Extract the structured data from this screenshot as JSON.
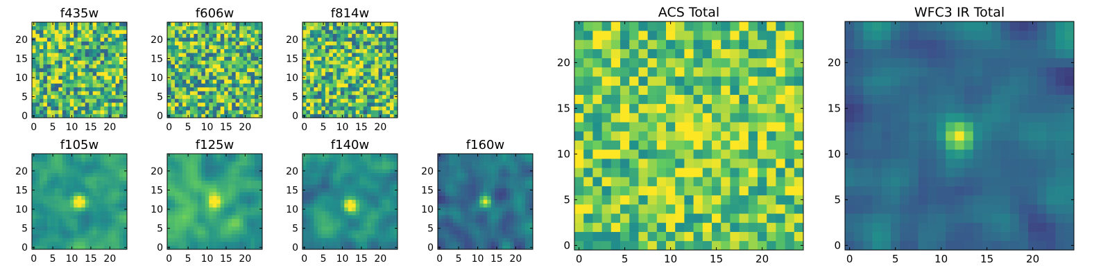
{
  "figure": {
    "colormap": "viridis",
    "cmap_stops": [
      "#440154",
      "#3b528b",
      "#21918c",
      "#5ec962",
      "#fde725"
    ]
  },
  "chart_data": [
    {
      "id": "f435w",
      "type": "heatmap",
      "title": "f435w",
      "grid_size": [
        25,
        25
      ],
      "xlim": [
        -0.5,
        24.5
      ],
      "ylim": [
        -0.5,
        24.5
      ],
      "x_ticks": [
        0,
        5,
        10,
        15,
        20
      ],
      "y_ticks": [
        0,
        5,
        10,
        15,
        20
      ],
      "x_tick_labels": [
        "0",
        "5",
        "10",
        "15",
        "20"
      ],
      "y_tick_labels": [
        "0",
        "5",
        "10",
        "15",
        "20"
      ],
      "grid": false,
      "pattern": "noise",
      "base_level": 0.68,
      "noise_amplitude": 0.38,
      "source_center": null,
      "source_amplitude": 0,
      "source_sigma": 1.2,
      "seed": 11
    },
    {
      "id": "f606w",
      "type": "heatmap",
      "title": "f606w",
      "grid_size": [
        25,
        25
      ],
      "xlim": [
        -0.5,
        24.5
      ],
      "ylim": [
        -0.5,
        24.5
      ],
      "x_ticks": [
        0,
        5,
        10,
        15,
        20
      ],
      "y_ticks": [
        0,
        5,
        10,
        15,
        20
      ],
      "x_tick_labels": [
        "0",
        "5",
        "10",
        "15",
        "20"
      ],
      "y_tick_labels": [
        "0",
        "5",
        "10",
        "15",
        "20"
      ],
      "grid": false,
      "pattern": "noise",
      "base_level": 0.68,
      "noise_amplitude": 0.38,
      "source_center": [
        12.5,
        12.5
      ],
      "source_amplitude": 0.45,
      "source_sigma": 1.1,
      "seed": 23
    },
    {
      "id": "f814w",
      "type": "heatmap",
      "title": "f814w",
      "grid_size": [
        25,
        25
      ],
      "xlim": [
        -0.5,
        24.5
      ],
      "ylim": [
        -0.5,
        24.5
      ],
      "x_ticks": [
        0,
        5,
        10,
        15,
        20
      ],
      "y_ticks": [
        0,
        5,
        10,
        15,
        20
      ],
      "x_tick_labels": [
        "0",
        "5",
        "10",
        "15",
        "20"
      ],
      "y_tick_labels": [
        "0",
        "5",
        "10",
        "15",
        "20"
      ],
      "grid": false,
      "pattern": "noise",
      "base_level": 0.68,
      "noise_amplitude": 0.38,
      "source_center": [
        13,
        12
      ],
      "source_amplitude": 0.5,
      "source_sigma": 1.3,
      "seed": 37
    },
    {
      "id": "f105w",
      "type": "heatmap",
      "title": "f105w",
      "grid_size": [
        25,
        25
      ],
      "xlim": [
        -0.5,
        24.5
      ],
      "ylim": [
        -0.5,
        24.5
      ],
      "x_ticks": [
        0,
        5,
        10,
        15,
        20
      ],
      "y_ticks": [
        0,
        5,
        10,
        15,
        20
      ],
      "x_tick_labels": [
        "0",
        "5",
        "10",
        "15",
        "20"
      ],
      "y_tick_labels": [
        "0",
        "5",
        "10",
        "15",
        "20"
      ],
      "grid": false,
      "pattern": "smooth",
      "base_level": 0.55,
      "noise_amplitude": 0.22,
      "source_center": [
        12,
        12
      ],
      "source_amplitude": 0.6,
      "source_sigma": 1.3,
      "seed": 41
    },
    {
      "id": "f125w",
      "type": "heatmap",
      "title": "f125w",
      "grid_size": [
        25,
        25
      ],
      "xlim": [
        -0.5,
        24.5
      ],
      "ylim": [
        -0.5,
        24.5
      ],
      "x_ticks": [
        0,
        5,
        10,
        15,
        20
      ],
      "y_ticks": [
        0,
        5,
        10,
        15,
        20
      ],
      "x_tick_labels": [
        "0",
        "5",
        "10",
        "15",
        "20"
      ],
      "y_tick_labels": [
        "0",
        "5",
        "10",
        "15",
        "20"
      ],
      "grid": false,
      "pattern": "smooth",
      "base_level": 0.6,
      "noise_amplitude": 0.22,
      "source_center": [
        12,
        12
      ],
      "source_amplitude": 0.55,
      "source_sigma": 1.3,
      "seed": 53
    },
    {
      "id": "f140w",
      "type": "heatmap",
      "title": "f140w",
      "grid_size": [
        25,
        25
      ],
      "xlim": [
        -0.5,
        24.5
      ],
      "ylim": [
        -0.5,
        24.5
      ],
      "x_ticks": [
        0,
        5,
        10,
        15,
        20
      ],
      "y_ticks": [
        0,
        5,
        10,
        15,
        20
      ],
      "x_tick_labels": [
        "0",
        "5",
        "10",
        "15",
        "20"
      ],
      "y_tick_labels": [
        "0",
        "5",
        "10",
        "15",
        "20"
      ],
      "grid": false,
      "pattern": "smooth",
      "base_level": 0.5,
      "noise_amplitude": 0.22,
      "source_center": [
        12,
        11
      ],
      "source_amplitude": 0.6,
      "source_sigma": 1.2,
      "seed": 67
    },
    {
      "id": "f160w",
      "type": "heatmap",
      "title": "f160w",
      "grid_size": [
        25,
        25
      ],
      "xlim": [
        -0.5,
        24.5
      ],
      "ylim": [
        -0.5,
        24.5
      ],
      "x_ticks": [
        0,
        5,
        10,
        15,
        20
      ],
      "y_ticks": [
        0,
        5,
        10,
        15,
        20
      ],
      "x_tick_labels": [
        "0",
        "5",
        "10",
        "15",
        "20"
      ],
      "y_tick_labels": [
        "0",
        "5",
        "10",
        "15",
        "20"
      ],
      "grid": false,
      "pattern": "smooth",
      "base_level": 0.38,
      "noise_amplitude": 0.22,
      "source_center": [
        12,
        12
      ],
      "source_amplitude": 0.6,
      "source_sigma": 1.1,
      "seed": 79
    },
    {
      "id": "acs_total",
      "type": "heatmap",
      "title": "ACS Total",
      "grid_size": [
        25,
        25
      ],
      "xlim": [
        -0.5,
        24.5
      ],
      "ylim": [
        -0.5,
        24.5
      ],
      "x_ticks": [
        0,
        5,
        10,
        15,
        20
      ],
      "y_ticks": [
        0,
        5,
        10,
        15,
        20
      ],
      "x_tick_labels": [
        "0",
        "5",
        "10",
        "15",
        "20"
      ],
      "y_tick_labels": [
        "0",
        "5",
        "10",
        "15",
        "20"
      ],
      "grid": false,
      "pattern": "noise",
      "base_level": 0.75,
      "noise_amplitude": 0.28,
      "source_center": [
        12.5,
        12.5
      ],
      "source_amplitude": 0.4,
      "source_sigma": 1.3,
      "seed": 97
    },
    {
      "id": "wfc3_ir_total",
      "type": "heatmap",
      "title": "WFC3 IR Total",
      "grid_size": [
        25,
        25
      ],
      "xlim": [
        -0.5,
        24.5
      ],
      "ylim": [
        -0.5,
        24.5
      ],
      "x_ticks": [
        0,
        5,
        10,
        15,
        20
      ],
      "y_ticks": [
        0,
        5,
        10,
        15,
        20
      ],
      "x_tick_labels": [
        "0",
        "5",
        "10",
        "15",
        "20"
      ],
      "y_tick_labels": [
        "0",
        "5",
        "10",
        "15",
        "20"
      ],
      "grid": false,
      "pattern": "smooth",
      "base_level": 0.35,
      "noise_amplitude": 0.2,
      "source_center": [
        12,
        12
      ],
      "source_amplitude": 0.62,
      "source_sigma": 1.1,
      "seed": 113
    }
  ]
}
